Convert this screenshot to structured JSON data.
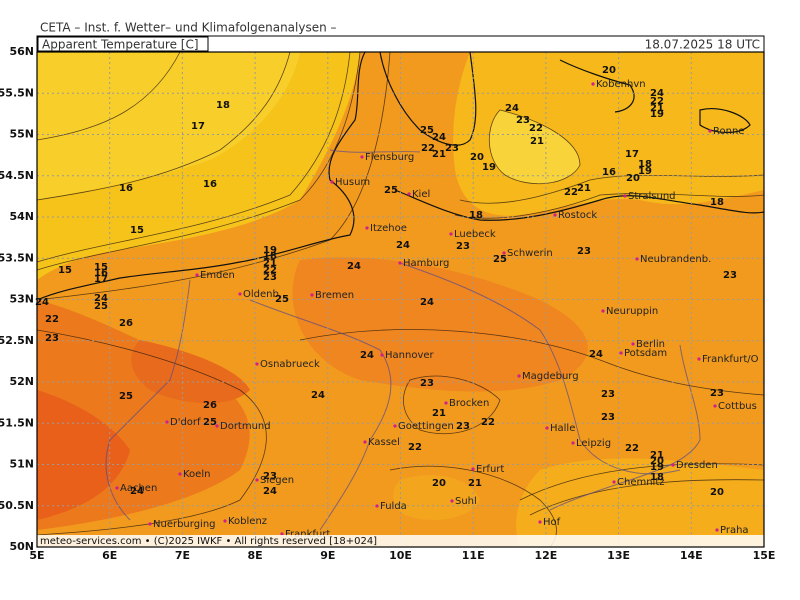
{
  "header": {
    "institute": "CETA  –  Inst. f. Wetter–  und Klimafolgenanalysen  –",
    "product": "Apparent Temperature [C]",
    "valid": "18.07.2025 18 UTC",
    "footer": "meteo-services.com  •  (C)2025 IWKF  •  All rights reserved [18+024]"
  },
  "map": {
    "lon_ticks": [
      {
        "value": 5,
        "label": "5E"
      },
      {
        "value": 6,
        "label": "6E"
      },
      {
        "value": 7,
        "label": "7E"
      },
      {
        "value": 8,
        "label": "8E"
      },
      {
        "value": 9,
        "label": "9E"
      },
      {
        "value": 10,
        "label": "10E"
      },
      {
        "value": 11,
        "label": "11E"
      },
      {
        "value": 12,
        "label": "12E"
      },
      {
        "value": 13,
        "label": "13E"
      },
      {
        "value": 14,
        "label": "14E"
      },
      {
        "value": 15,
        "label": "15E"
      }
    ],
    "lat_ticks": [
      {
        "value": 50,
        "label": "50N"
      },
      {
        "value": 50.5,
        "label": "50.5N"
      },
      {
        "value": 51,
        "label": "51N"
      },
      {
        "value": 51.5,
        "label": "51.5N"
      },
      {
        "value": 52,
        "label": "52N"
      },
      {
        "value": 52.5,
        "label": "52.5N"
      },
      {
        "value": 53,
        "label": "53N"
      },
      {
        "value": 53.5,
        "label": "53.5N"
      },
      {
        "value": 54,
        "label": "54N"
      },
      {
        "value": 54.5,
        "label": "54.5N"
      },
      {
        "value": 55,
        "label": "55N"
      },
      {
        "value": 55.5,
        "label": "55.5N"
      },
      {
        "value": 56,
        "label": "56N"
      }
    ],
    "cities": [
      "Kobenhvn",
      "Ronne",
      "Flensburg",
      "Husum",
      "Kiel",
      "Stralsund",
      "Rostock",
      "Itzehoe",
      "Luebeck",
      "Schwerin",
      "Neubrandenb.",
      "Hamburg",
      "Emden",
      "Oldenb.",
      "Bremen",
      "Neuruppin",
      "Berlin",
      "Potsdam",
      "Hannover",
      "Osnabrueck",
      "Frankfurt/O",
      "Magdeburg",
      "Brocken",
      "Dortmund",
      "Cottbus",
      "Goettingen",
      "Halle",
      "Leipzig",
      "Kassel",
      "D'dorf",
      "Koeln",
      "Erfurt",
      "Dresden",
      "Siegen",
      "Aachen",
      "Chemnitz",
      "Suhl",
      "Fulda",
      "Koblenz",
      "Nuerburging",
      "Hof",
      "Praha",
      "Frankfurt"
    ],
    "isotherm_labels": [
      20,
      24,
      22,
      21,
      19,
      18,
      17,
      24,
      25,
      24,
      23,
      22,
      22,
      21,
      23,
      20,
      21,
      19,
      17,
      18,
      19,
      20,
      16,
      21,
      22,
      16,
      16,
      25,
      18,
      18,
      15,
      24,
      23,
      25,
      23,
      15,
      15,
      16,
      17,
      19,
      18,
      21,
      22,
      23,
      24,
      23,
      24,
      24,
      25,
      25,
      24,
      22,
      26,
      23,
      24,
      24,
      23,
      23,
      23,
      25,
      26,
      24,
      21,
      23,
      22,
      23,
      25,
      22,
      22,
      21,
      20,
      19,
      18,
      23,
      24,
      24,
      20,
      21,
      20
    ]
  }
}
